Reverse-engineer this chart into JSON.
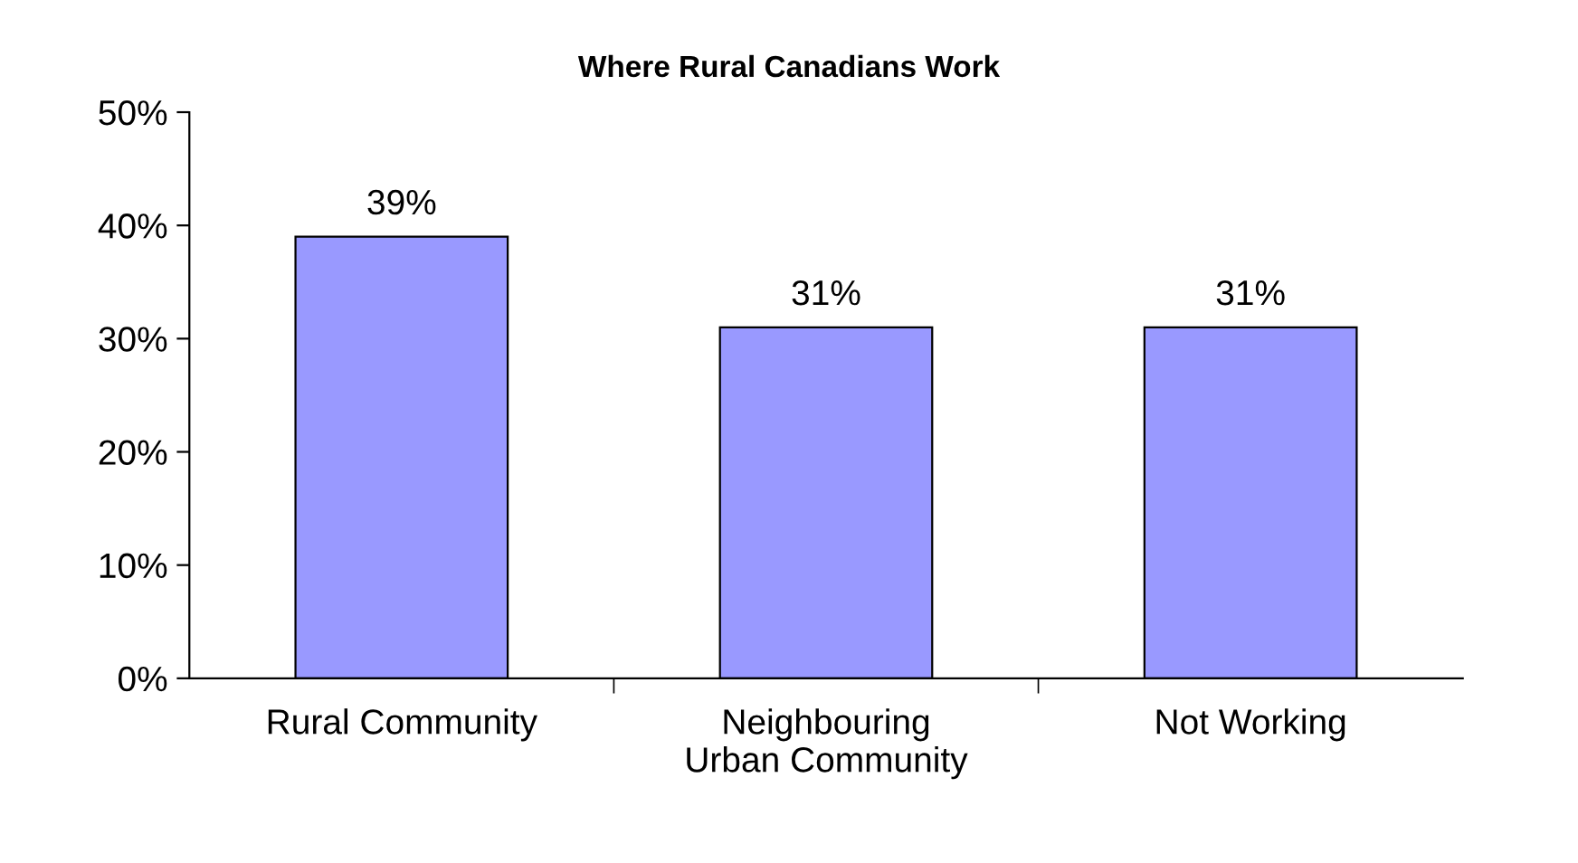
{
  "chart_data": {
    "type": "bar",
    "title": "Where Rural Canadians Work",
    "categories": [
      "Rural Community",
      "Neighbouring\nUrban Community",
      "Not Working"
    ],
    "values": [
      39,
      31,
      31
    ],
    "color": "#9999ff",
    "value_labels": [
      "39%",
      "31%",
      "31%"
    ],
    "ylim": [
      0,
      50
    ],
    "yticks": [
      {
        "value": 0,
        "label": "0%"
      },
      {
        "value": 10,
        "label": "10%"
      },
      {
        "value": 20,
        "label": "20%"
      },
      {
        "value": 30,
        "label": "30%"
      },
      {
        "value": 40,
        "label": "40%"
      },
      {
        "value": 50,
        "label": "50%"
      }
    ],
    "grid": false,
    "legend": false
  }
}
